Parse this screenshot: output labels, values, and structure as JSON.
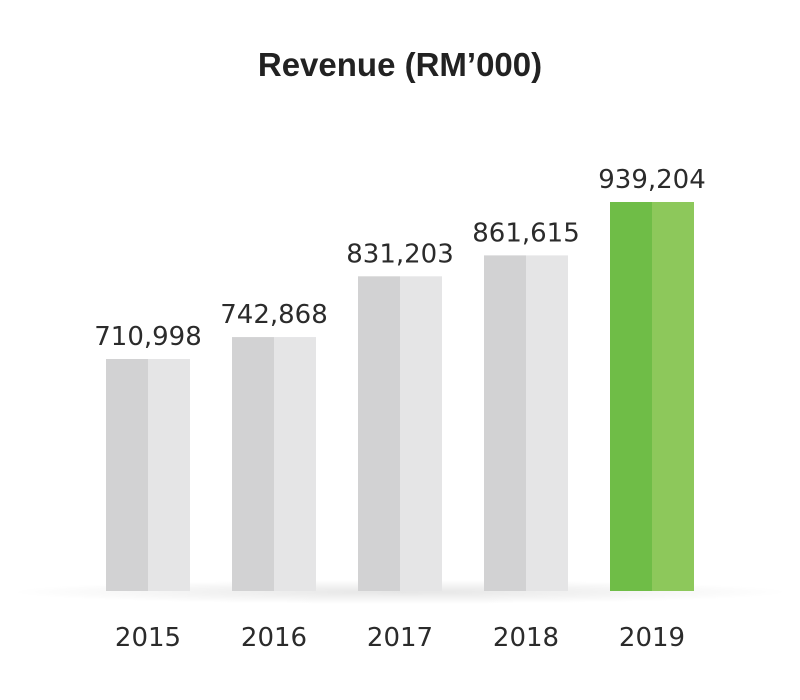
{
  "chart_data": {
    "type": "bar",
    "title": "Revenue (RM’000)",
    "xlabel": "",
    "ylabel": "",
    "categories": [
      "2015",
      "2016",
      "2017",
      "2018",
      "2019"
    ],
    "values": [
      710998,
      742868,
      831203,
      861615,
      939204
    ],
    "value_labels": [
      "710,998",
      "742,868",
      "831,203",
      "861,615",
      "939,204"
    ],
    "ylim": [
      0,
      1000000
    ],
    "grid": false,
    "highlight_index": 4
  },
  "colors": {
    "bar_dark": "#d2d2d3",
    "bar_light": "#e5e5e6",
    "highlight_dark": "#6fbd47",
    "highlight_light": "#8dc85b",
    "text": "#2b2b2b"
  }
}
